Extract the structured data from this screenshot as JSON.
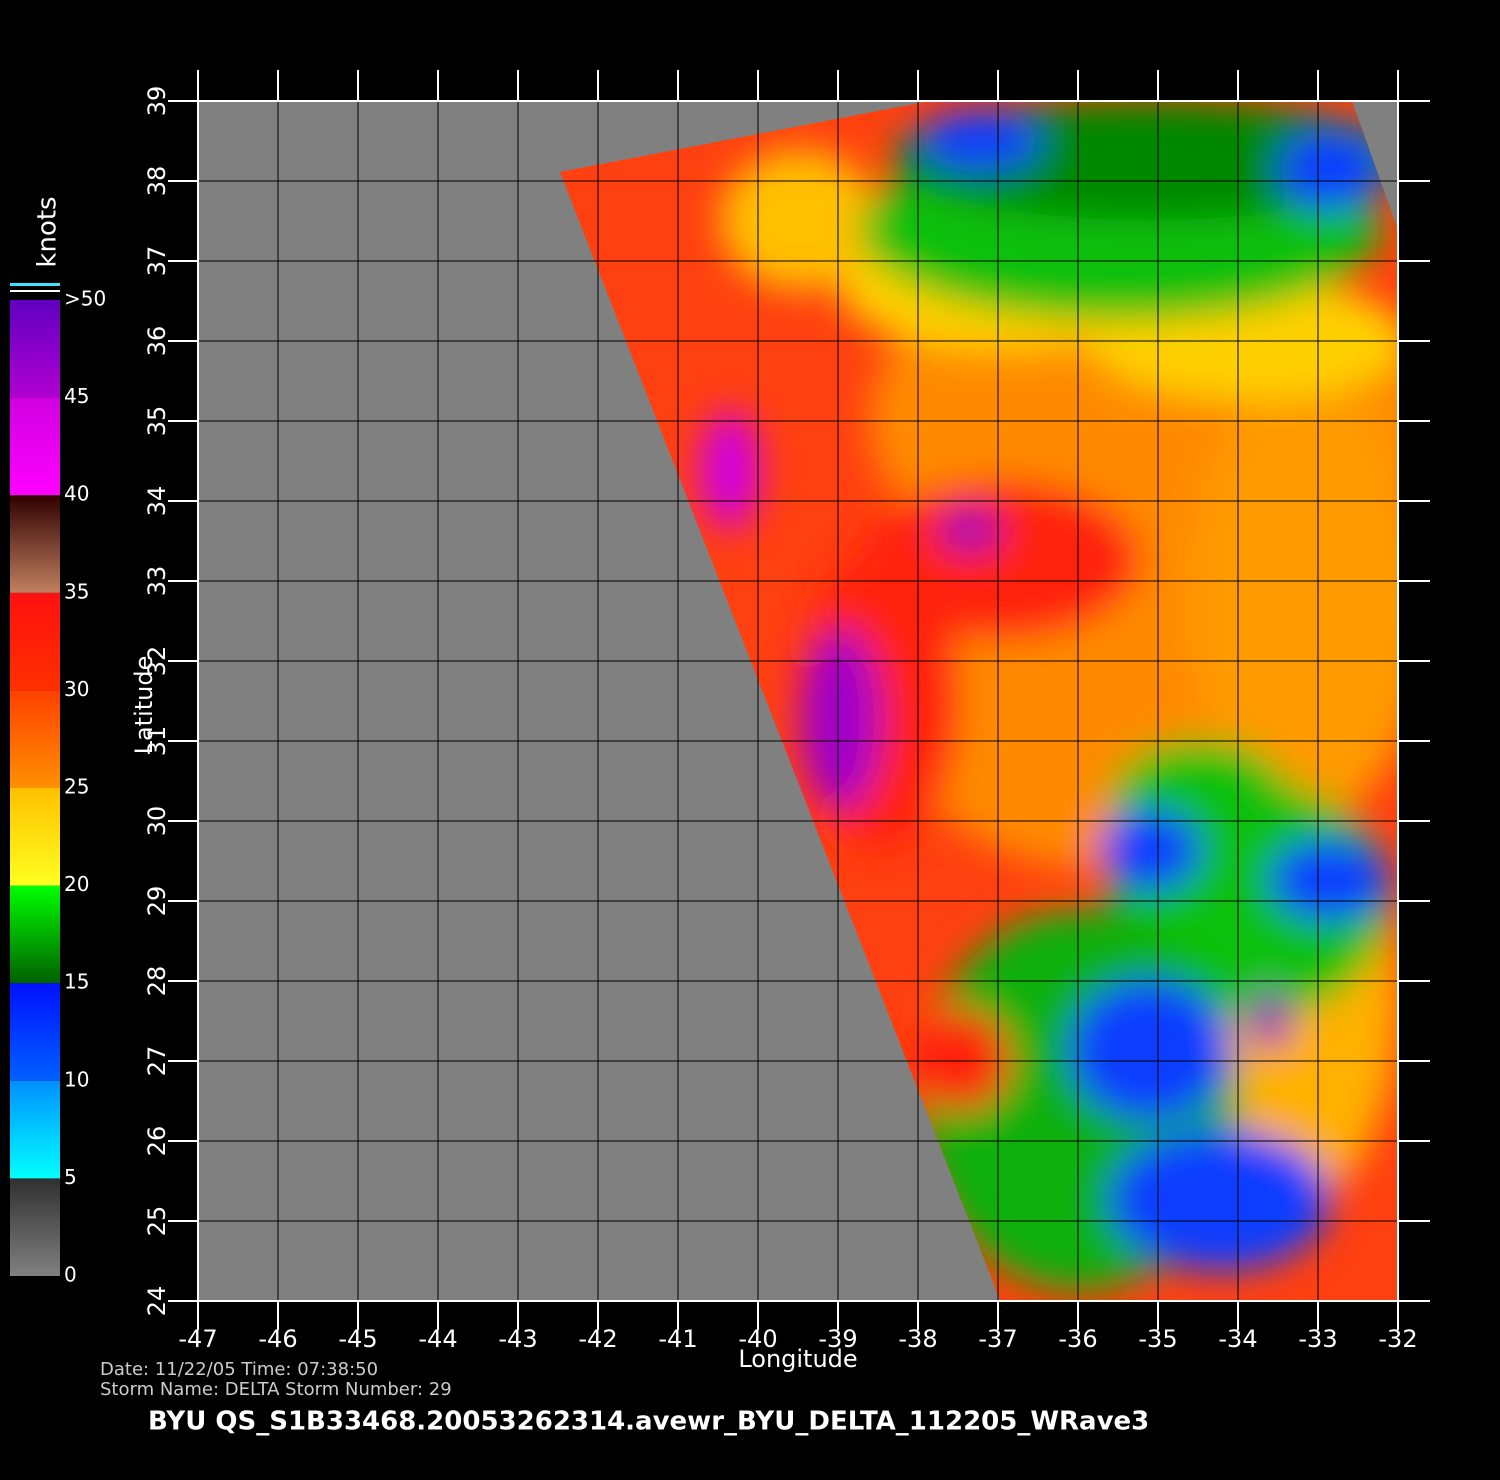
{
  "map": {
    "title": "BYU  QS_S1B33468.20053262314.avewr_BYU_DELTA_112205_WRave3",
    "date_line": "Date: 11/22/05   Time: 07:38:50",
    "storm_line": "Storm  Name: DELTA    Storm  Number: 29",
    "xlabel": "Longitude",
    "ylabel": "Latitude",
    "xlim": [
      -47,
      -32
    ],
    "ylim": [
      24,
      39
    ],
    "xticks": [
      -47,
      -46,
      -45,
      -44,
      -43,
      -42,
      -41,
      -40,
      -39,
      -38,
      -37,
      -36,
      -35,
      -34,
      -33,
      -32
    ],
    "yticks": [
      24,
      25,
      26,
      27,
      28,
      29,
      30,
      31,
      32,
      33,
      34,
      35,
      36,
      37,
      38,
      39
    ],
    "grid": true,
    "colorbar": {
      "title": "knots",
      "lim": [
        0,
        50
      ],
      "ticks": [
        0,
        5,
        10,
        15,
        20,
        25,
        30,
        35,
        40,
        45,
        {
          "value": 50,
          "label": ">50"
        }
      ],
      "colors": [
        [
          "#808080",
          "#303030"
        ],
        [
          "#00ffff",
          "#0090ff"
        ],
        [
          "#0060ff",
          "#0010ff"
        ],
        [
          "#006000",
          "#00ff00"
        ],
        [
          "#ffff20",
          "#ffc000"
        ],
        [
          "#ff9000",
          "#ff4000"
        ],
        [
          "#ff3000",
          "#ff1010"
        ],
        [
          "#c08060",
          "#300000"
        ],
        [
          "#ff00ff",
          "#d000e0"
        ],
        [
          "#b000d0",
          "#6000c0"
        ]
      ]
    }
  }
}
